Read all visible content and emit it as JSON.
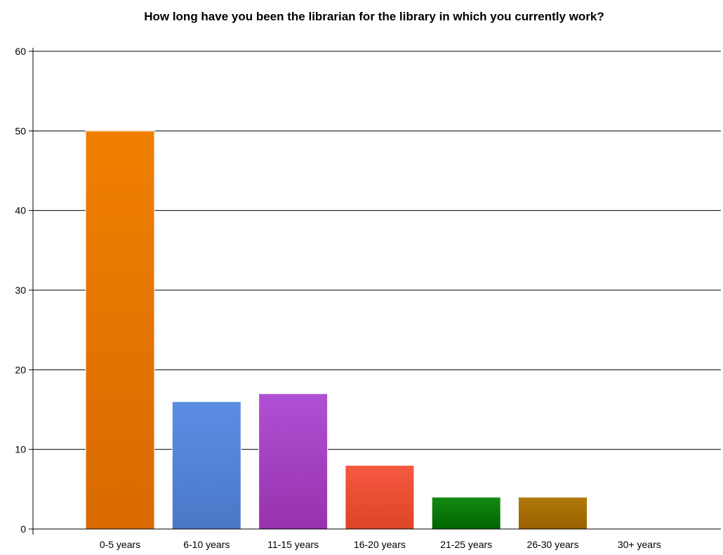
{
  "chart_data": {
    "type": "bar",
    "title": "How long have you been the librarian for the library in which you currently work?",
    "categories": [
      "0-5 years",
      "6-10 years",
      "11-15 years",
      "16-20 years",
      "21-25 years",
      "26-30 years",
      "30+ years"
    ],
    "values": [
      50,
      16,
      17,
      8,
      4,
      4,
      0
    ],
    "colors": [
      "#f07f00",
      "#5b8ee4",
      "#b050d4",
      "#f55a40",
      "#138a13",
      "#b0790a",
      "#cccccc"
    ],
    "colors_dark": [
      "#d96a00",
      "#4a78c8",
      "#9832ae",
      "#de4428",
      "#006400",
      "#996000",
      "#aaaaaa"
    ],
    "xlabel": "",
    "ylabel": "",
    "ylim": [
      0,
      60
    ],
    "yticks": [
      0,
      10,
      20,
      30,
      40,
      50,
      60
    ],
    "grid": true,
    "legend": "none"
  }
}
